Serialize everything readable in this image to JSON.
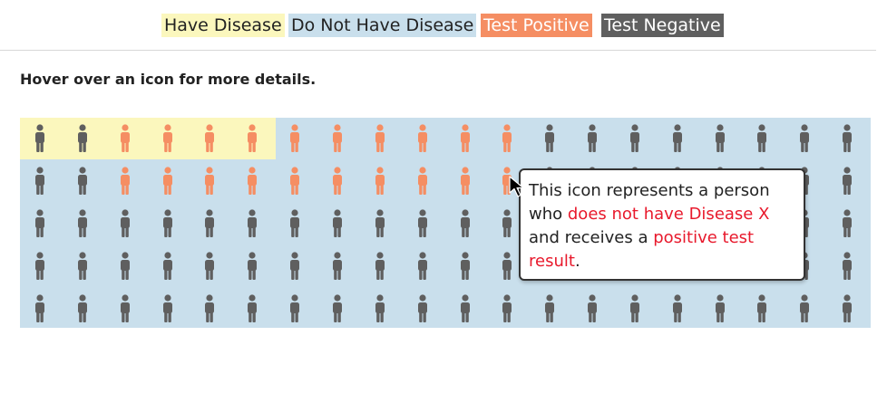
{
  "legend": {
    "have_disease": "Have Disease",
    "do_not_have_disease": "Do Not Have Disease",
    "test_positive": "Test Positive",
    "test_negative": "Test Negative"
  },
  "instructions": "Hover over an icon for more details.",
  "colors": {
    "have_disease_bg": "#fbf7bd",
    "do_not_have_disease_bg": "#c9dfec",
    "test_positive": "#f58e63",
    "test_negative": "#5f5f5f",
    "highlight_text": "#e8192c"
  },
  "grid": {
    "rows": 5,
    "columns": 20,
    "icon": "person-icon",
    "row_results": [
      [
        "neg",
        "neg",
        "pos",
        "pos",
        "pos",
        "pos",
        "pos",
        "pos",
        "pos",
        "pos",
        "pos",
        "pos",
        "neg",
        "neg",
        "neg",
        "neg",
        "neg",
        "neg",
        "neg",
        "neg"
      ],
      [
        "neg",
        "neg",
        "pos",
        "pos",
        "pos",
        "pos",
        "pos",
        "pos",
        "pos",
        "pos",
        "pos",
        "pos",
        "neg",
        "neg",
        "neg",
        "neg",
        "neg",
        "neg",
        "neg",
        "neg"
      ],
      [
        "neg",
        "neg",
        "neg",
        "neg",
        "neg",
        "neg",
        "neg",
        "neg",
        "neg",
        "neg",
        "neg",
        "neg",
        "neg",
        "neg",
        "neg",
        "neg",
        "neg",
        "neg",
        "neg",
        "neg"
      ],
      [
        "neg",
        "neg",
        "neg",
        "neg",
        "neg",
        "neg",
        "neg",
        "neg",
        "neg",
        "neg",
        "neg",
        "neg",
        "neg",
        "neg",
        "neg",
        "neg",
        "neg",
        "neg",
        "neg",
        "neg"
      ],
      [
        "neg",
        "neg",
        "neg",
        "neg",
        "neg",
        "neg",
        "neg",
        "neg",
        "neg",
        "neg",
        "neg",
        "neg",
        "neg",
        "neg",
        "neg",
        "neg",
        "neg",
        "neg",
        "neg",
        "neg"
      ]
    ]
  },
  "tooltip": {
    "part1": "This icon represents a person who ",
    "part2": "does not have Disease X",
    "part3": " and receives a ",
    "part4": "positive test result",
    "part5": "."
  }
}
